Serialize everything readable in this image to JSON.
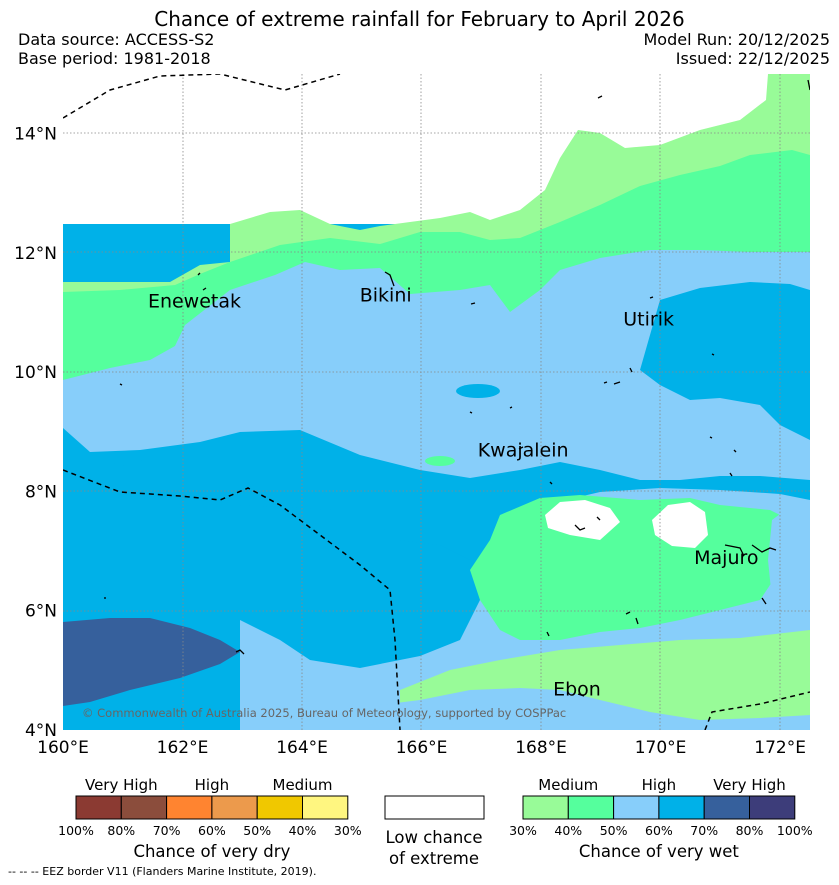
{
  "title": "Chance of extreme rainfall for February to April 2026",
  "header": {
    "data_source": "Data source: ACCESS-S2",
    "base_period": "Base period: 1981-2018",
    "model_run": "Model Run: 20/12/2025",
    "issued": "Issued: 22/12/2025"
  },
  "map": {
    "lat_ticks": [
      {
        "lat": 14,
        "label": "14°N"
      },
      {
        "lat": 12,
        "label": "12°N"
      },
      {
        "lat": 10,
        "label": "10°N"
      },
      {
        "lat": 8,
        "label": "8°N"
      },
      {
        "lat": 6,
        "label": "6°N"
      },
      {
        "lat": 4,
        "label": "4°N"
      }
    ],
    "lon_ticks": [
      {
        "lon": 160,
        "label": "160°E"
      },
      {
        "lon": 162,
        "label": "162°E"
      },
      {
        "lon": 164,
        "label": "164°E"
      },
      {
        "lon": 166,
        "label": "166°E"
      },
      {
        "lon": 168,
        "label": "168°E"
      },
      {
        "lon": 170,
        "label": "170°E"
      },
      {
        "lon": 172,
        "label": "172°E"
      }
    ],
    "places": [
      {
        "name": "Enewetak",
        "lon": 162.2,
        "lat": 11.2
      },
      {
        "name": "Bikini",
        "lon": 165.4,
        "lat": 11.3
      },
      {
        "name": "Utirik",
        "lon": 169.8,
        "lat": 10.9
      },
      {
        "name": "Kwajalein",
        "lon": 167.7,
        "lat": 8.7
      },
      {
        "name": "Majuro",
        "lon": 171.1,
        "lat": 6.9
      },
      {
        "name": "Ebon",
        "lon": 168.6,
        "lat": 4.7
      }
    ],
    "copyright": "© Commonwealth of Australia 2025, Bureau of Meteorology, supported by COSPPac"
  },
  "colors": {
    "medium_wet": "#98fb98",
    "high_wet_40": "#55ff9d",
    "high_wet_50": "#87cefa",
    "very_high_60": "#00b1e8",
    "very_high_70": "#36609c",
    "very_high_80": "#3d3d7a",
    "low_chance": "#ffffff"
  },
  "legend": {
    "dry": {
      "categories": [
        "Very High",
        "High",
        "Medium"
      ],
      "swatches": [
        "#8b3a32",
        "#8b4d3c",
        "#ff8430",
        "#ec9a4c",
        "#f0c800",
        "#fff680"
      ],
      "percent_labels": [
        "100%",
        "80%",
        "70%",
        "60%",
        "50%",
        "40%",
        "30%"
      ],
      "title": "Chance of very dry"
    },
    "low": {
      "line1": "Low chance",
      "line2": "of extreme"
    },
    "wet": {
      "categories": [
        "Medium",
        "High",
        "Very High"
      ],
      "swatches": [
        "#98fb98",
        "#55ff9d",
        "#87cefa",
        "#00b1e8",
        "#36609c",
        "#3d3d7a"
      ],
      "percent_labels": [
        "30%",
        "40%",
        "50%",
        "60%",
        "70%",
        "80%",
        "100%"
      ],
      "title": "Chance of very wet"
    }
  },
  "footnote": "--  --  -- EEZ border V11 (Flanders Marine Institute, 2019)."
}
